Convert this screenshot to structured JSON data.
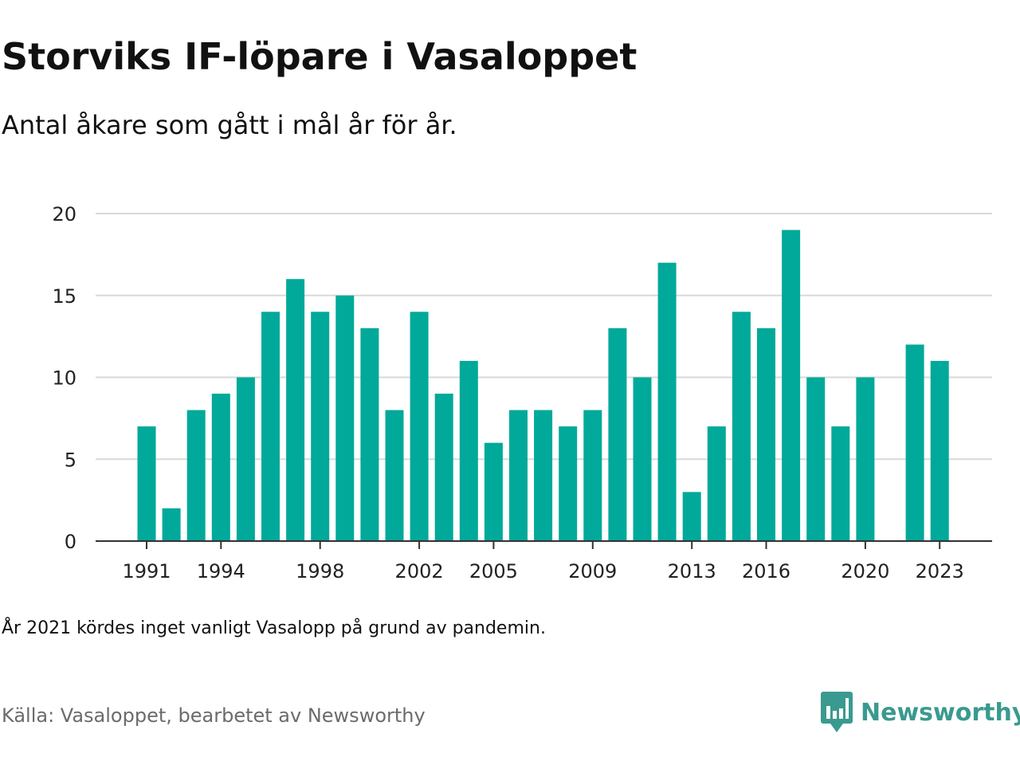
{
  "title": "Storviks IF-löpare i Vasaloppet",
  "subtitle": "Antal åkare som gått i mål år för år.",
  "note": "År 2021 kördes inget vanligt Vasalopp på grund av pandemin.",
  "source": "Källa: Vasaloppet, bearbetet av Newsworthy",
  "logo": {
    "text": "Newsworthy",
    "color": "#3a9a8f",
    "icon": "newsworthy-bar-icon"
  },
  "chart_data": {
    "type": "bar",
    "title": "Storviks IF-löpare i Vasaloppet",
    "subtitle": "Antal åkare som gått i mål år för år.",
    "xlabel": "",
    "ylabel": "",
    "ylim": [
      0,
      20
    ],
    "yticks": [
      "0",
      "5",
      "10",
      "15",
      "20"
    ],
    "xticks": [
      "1991",
      "1994",
      "1998",
      "2002",
      "2005",
      "2009",
      "2013",
      "2016",
      "2020",
      "2023"
    ],
    "grid": true,
    "legend": "none",
    "bar_color": "#00a99a",
    "categories": [
      "1991",
      "1992",
      "1993",
      "1994",
      "1995",
      "1996",
      "1997",
      "1998",
      "1999",
      "2000",
      "2001",
      "2002",
      "2003",
      "2004",
      "2005",
      "2006",
      "2007",
      "2008",
      "2009",
      "2010",
      "2011",
      "2012",
      "2013",
      "2014",
      "2015",
      "2016",
      "2017",
      "2018",
      "2019",
      "2020",
      "2021",
      "2022",
      "2023"
    ],
    "values": [
      7,
      2,
      8,
      9,
      10,
      14,
      16,
      14,
      15,
      13,
      8,
      14,
      9,
      11,
      6,
      8,
      8,
      7,
      8,
      13,
      10,
      17,
      3,
      7,
      14,
      13,
      19,
      10,
      7,
      10,
      null,
      12,
      11
    ]
  }
}
